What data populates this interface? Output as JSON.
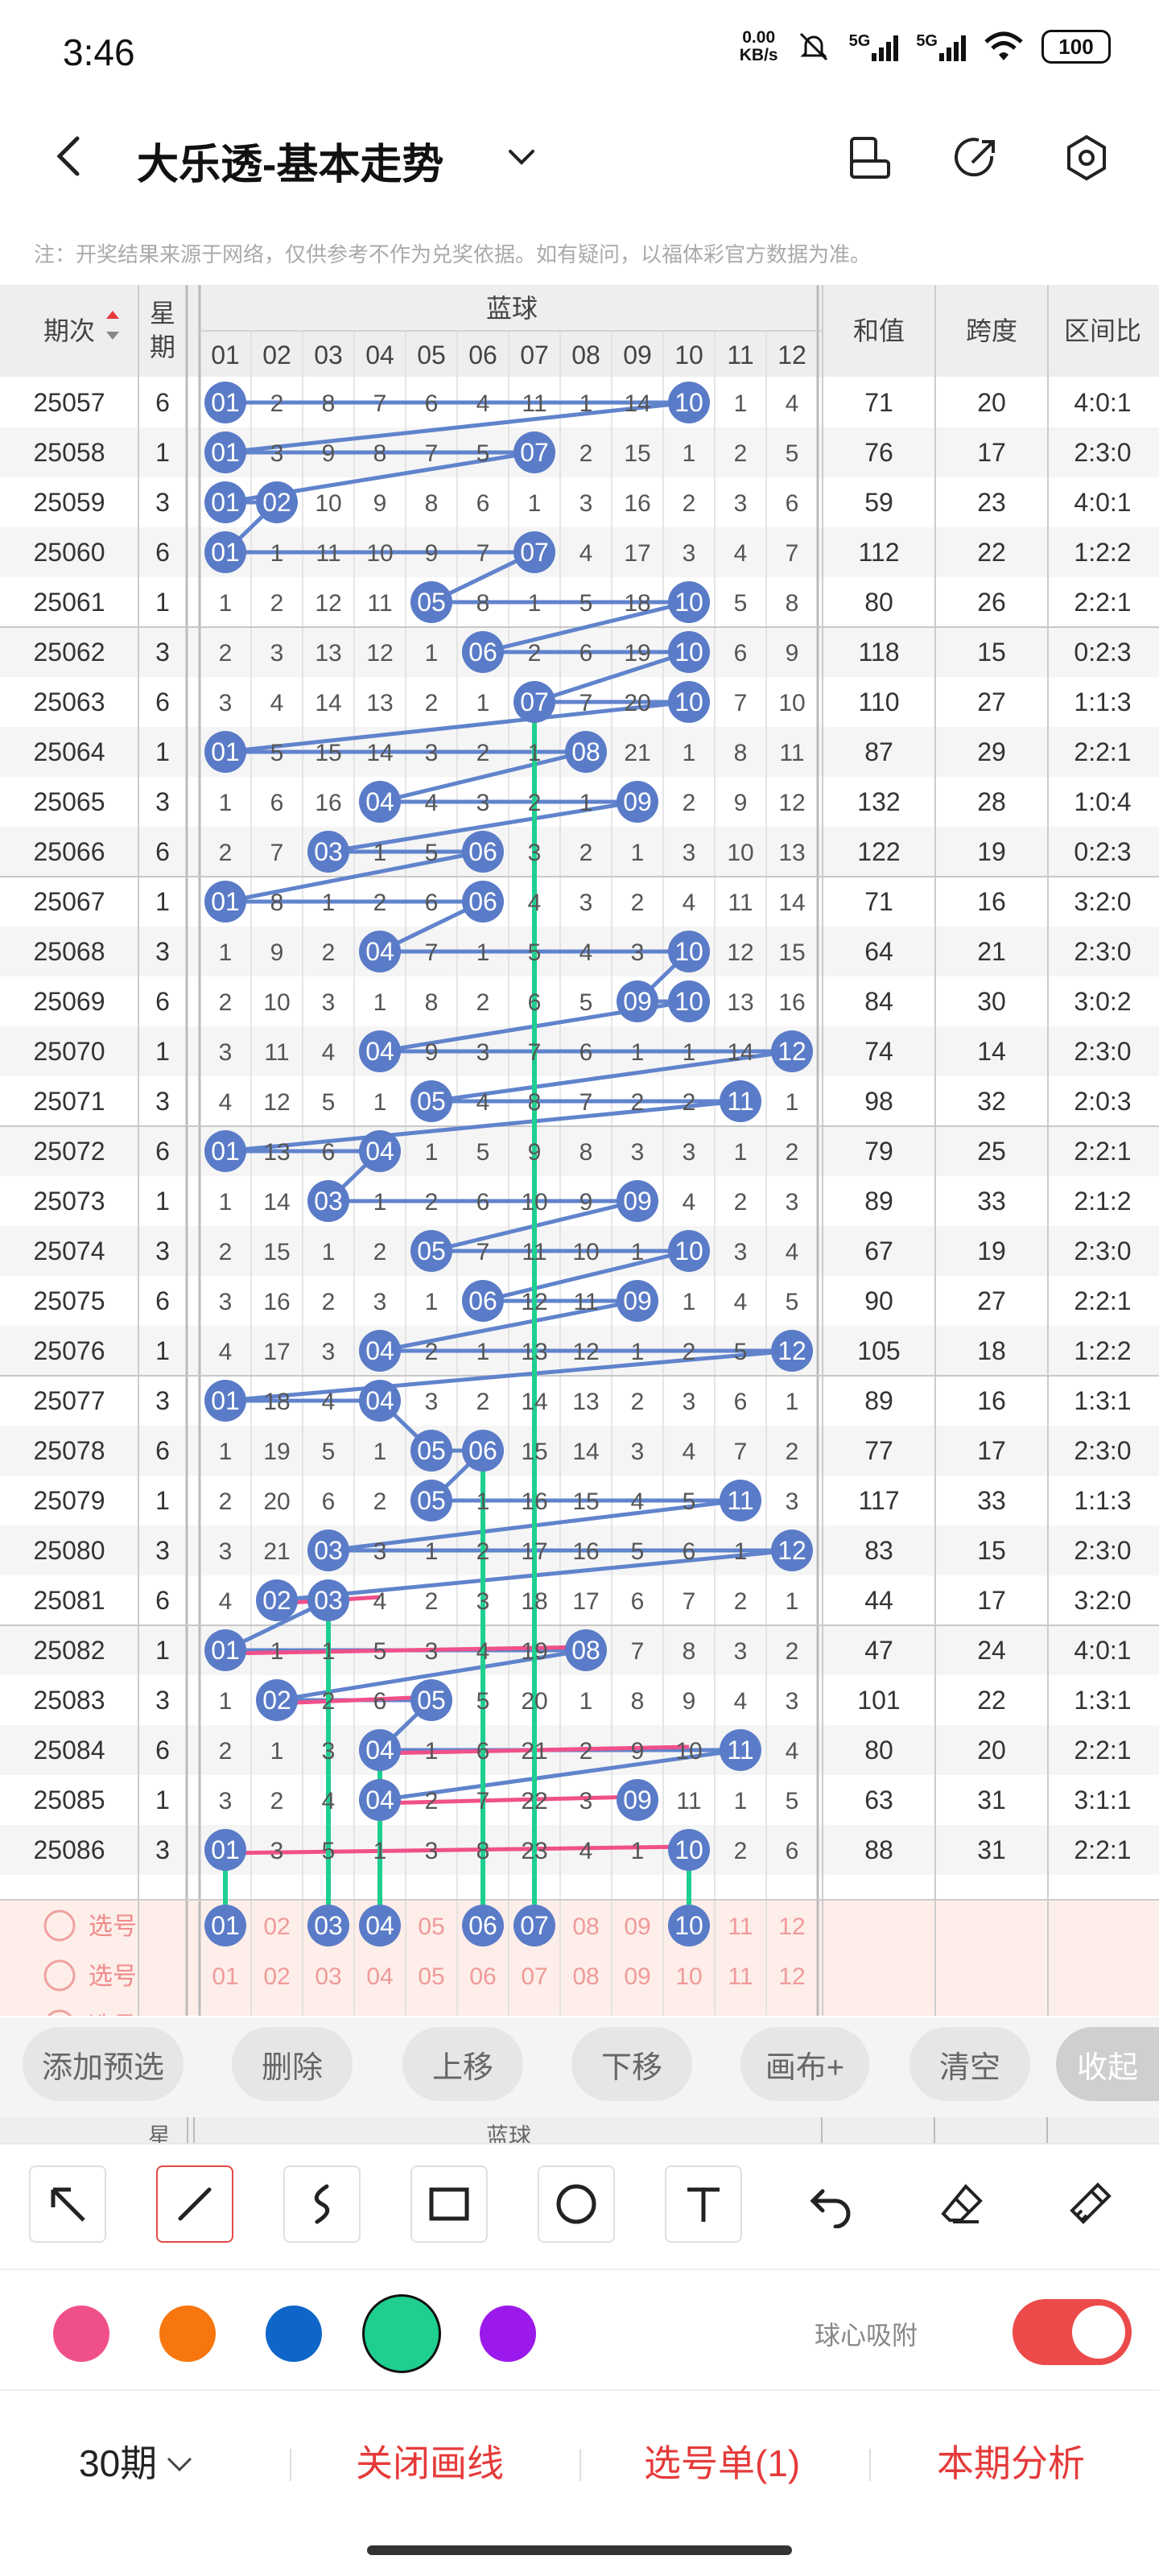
{
  "status": {
    "time": "3:46",
    "net_speed_top": "0.00",
    "net_speed_bottom": "KB/s",
    "sim1": "5G",
    "sim2": "5G",
    "battery": "100"
  },
  "nav": {
    "title": "大乐透-基本走势"
  },
  "note": "注：开奖结果来源于网络，仅供参考不作为兑奖依据。如有疑问，以福体彩官方数据为准。",
  "table": {
    "headers": {
      "period": "期次",
      "week": "星期",
      "blue": "蓝球",
      "sum": "和值",
      "span": "跨度",
      "ratio": "区间比"
    },
    "cols": [
      "01",
      "02",
      "03",
      "04",
      "05",
      "06",
      "07",
      "08",
      "09",
      "10",
      "11",
      "12"
    ],
    "rows": [
      {
        "p": "25057",
        "w": "6",
        "c": [
          "01",
          "2",
          "8",
          "7",
          "6",
          "4",
          "11",
          "1",
          "14",
          "10",
          "1",
          "4"
        ],
        "h": [
          1,
          10
        ],
        "s": "71",
        "k": "20",
        "r": "4:0:1"
      },
      {
        "p": "25058",
        "w": "1",
        "c": [
          "01",
          "3",
          "9",
          "8",
          "7",
          "5",
          "07",
          "2",
          "15",
          "1",
          "2",
          "5"
        ],
        "h": [
          1,
          7
        ],
        "s": "76",
        "k": "17",
        "r": "2:3:0"
      },
      {
        "p": "25059",
        "w": "3",
        "c": [
          "01",
          "02",
          "10",
          "9",
          "8",
          "6",
          "1",
          "3",
          "16",
          "2",
          "3",
          "6"
        ],
        "h": [
          1,
          2
        ],
        "s": "59",
        "k": "23",
        "r": "4:0:1"
      },
      {
        "p": "25060",
        "w": "6",
        "c": [
          "01",
          "1",
          "11",
          "10",
          "9",
          "7",
          "07",
          "4",
          "17",
          "3",
          "4",
          "7"
        ],
        "h": [
          1,
          7
        ],
        "s": "112",
        "k": "22",
        "r": "1:2:2"
      },
      {
        "p": "25061",
        "w": "1",
        "c": [
          "1",
          "2",
          "12",
          "11",
          "05",
          "8",
          "1",
          "5",
          "18",
          "10",
          "5",
          "8"
        ],
        "h": [
          5,
          10
        ],
        "s": "80",
        "k": "26",
        "r": "2:2:1"
      },
      {
        "p": "25062",
        "w": "3",
        "c": [
          "2",
          "3",
          "13",
          "12",
          "1",
          "06",
          "2",
          "6",
          "19",
          "10",
          "6",
          "9"
        ],
        "h": [
          6,
          10
        ],
        "s": "118",
        "k": "15",
        "r": "0:2:3"
      },
      {
        "p": "25063",
        "w": "6",
        "c": [
          "3",
          "4",
          "14",
          "13",
          "2",
          "1",
          "07",
          "7",
          "20",
          "10",
          "7",
          "10"
        ],
        "h": [
          7,
          10
        ],
        "s": "110",
        "k": "27",
        "r": "1:1:3"
      },
      {
        "p": "25064",
        "w": "1",
        "c": [
          "01",
          "5",
          "15",
          "14",
          "3",
          "2",
          "1",
          "08",
          "21",
          "1",
          "8",
          "11"
        ],
        "h": [
          1,
          8
        ],
        "s": "87",
        "k": "29",
        "r": "2:2:1"
      },
      {
        "p": "25065",
        "w": "3",
        "c": [
          "1",
          "6",
          "16",
          "04",
          "4",
          "3",
          "2",
          "1",
          "09",
          "2",
          "9",
          "12"
        ],
        "h": [
          4,
          9
        ],
        "s": "132",
        "k": "28",
        "r": "1:0:4"
      },
      {
        "p": "25066",
        "w": "6",
        "c": [
          "2",
          "7",
          "03",
          "1",
          "5",
          "06",
          "3",
          "2",
          "1",
          "3",
          "10",
          "13"
        ],
        "h": [
          3,
          6
        ],
        "s": "122",
        "k": "19",
        "r": "0:2:3"
      },
      {
        "p": "25067",
        "w": "1",
        "c": [
          "01",
          "8",
          "1",
          "2",
          "6",
          "06",
          "4",
          "3",
          "2",
          "4",
          "11",
          "14"
        ],
        "h": [
          1,
          6
        ],
        "s": "71",
        "k": "16",
        "r": "3:2:0"
      },
      {
        "p": "25068",
        "w": "3",
        "c": [
          "1",
          "9",
          "2",
          "04",
          "7",
          "1",
          "5",
          "4",
          "3",
          "10",
          "12",
          "15"
        ],
        "h": [
          4,
          10
        ],
        "s": "64",
        "k": "21",
        "r": "2:3:0"
      },
      {
        "p": "25069",
        "w": "6",
        "c": [
          "2",
          "10",
          "3",
          "1",
          "8",
          "2",
          "6",
          "5",
          "09",
          "10",
          "13",
          "16"
        ],
        "h": [
          9,
          10
        ],
        "s": "84",
        "k": "30",
        "r": "3:0:2"
      },
      {
        "p": "25070",
        "w": "1",
        "c": [
          "3",
          "11",
          "4",
          "04",
          "9",
          "3",
          "7",
          "6",
          "1",
          "1",
          "14",
          "12"
        ],
        "h": [
          4,
          12
        ],
        "s": "74",
        "k": "14",
        "r": "2:3:0"
      },
      {
        "p": "25071",
        "w": "3",
        "c": [
          "4",
          "12",
          "5",
          "1",
          "05",
          "4",
          "8",
          "7",
          "2",
          "2",
          "11",
          "1"
        ],
        "h": [
          5,
          11
        ],
        "s": "98",
        "k": "32",
        "r": "2:0:3"
      },
      {
        "p": "25072",
        "w": "6",
        "c": [
          "01",
          "13",
          "6",
          "04",
          "1",
          "5",
          "9",
          "8",
          "3",
          "3",
          "1",
          "2"
        ],
        "h": [
          1,
          4
        ],
        "s": "79",
        "k": "25",
        "r": "2:2:1"
      },
      {
        "p": "25073",
        "w": "1",
        "c": [
          "1",
          "14",
          "03",
          "1",
          "2",
          "6",
          "10",
          "9",
          "09",
          "4",
          "2",
          "3"
        ],
        "h": [
          3,
          9
        ],
        "s": "89",
        "k": "33",
        "r": "2:1:2"
      },
      {
        "p": "25074",
        "w": "3",
        "c": [
          "2",
          "15",
          "1",
          "2",
          "05",
          "7",
          "11",
          "10",
          "1",
          "10",
          "3",
          "4"
        ],
        "h": [
          5,
          10
        ],
        "s": "67",
        "k": "19",
        "r": "2:3:0"
      },
      {
        "p": "25075",
        "w": "6",
        "c": [
          "3",
          "16",
          "2",
          "3",
          "1",
          "06",
          "12",
          "11",
          "09",
          "1",
          "4",
          "5"
        ],
        "h": [
          6,
          9
        ],
        "s": "90",
        "k": "27",
        "r": "2:2:1"
      },
      {
        "p": "25076",
        "w": "1",
        "c": [
          "4",
          "17",
          "3",
          "04",
          "2",
          "1",
          "13",
          "12",
          "1",
          "2",
          "5",
          "12"
        ],
        "h": [
          4,
          12
        ],
        "s": "105",
        "k": "18",
        "r": "1:2:2"
      },
      {
        "p": "25077",
        "w": "3",
        "c": [
          "01",
          "18",
          "4",
          "04",
          "3",
          "2",
          "14",
          "13",
          "2",
          "3",
          "6",
          "1"
        ],
        "h": [
          1,
          4
        ],
        "s": "89",
        "k": "16",
        "r": "1:3:1"
      },
      {
        "p": "25078",
        "w": "6",
        "c": [
          "1",
          "19",
          "5",
          "1",
          "05",
          "06",
          "15",
          "14",
          "3",
          "4",
          "7",
          "2"
        ],
        "h": [
          5,
          6
        ],
        "s": "77",
        "k": "17",
        "r": "2:3:0"
      },
      {
        "p": "25079",
        "w": "1",
        "c": [
          "2",
          "20",
          "6",
          "2",
          "05",
          "1",
          "16",
          "15",
          "4",
          "5",
          "11",
          "3"
        ],
        "h": [
          5,
          11
        ],
        "s": "117",
        "k": "33",
        "r": "1:1:3"
      },
      {
        "p": "25080",
        "w": "3",
        "c": [
          "3",
          "21",
          "03",
          "3",
          "1",
          "2",
          "17",
          "16",
          "5",
          "6",
          "1",
          "12"
        ],
        "h": [
          3,
          12
        ],
        "s": "83",
        "k": "15",
        "r": "2:3:0"
      },
      {
        "p": "25081",
        "w": "6",
        "c": [
          "4",
          "02",
          "03",
          "4",
          "2",
          "3",
          "18",
          "17",
          "6",
          "7",
          "2",
          "1"
        ],
        "h": [
          2,
          3
        ],
        "s": "44",
        "k": "17",
        "r": "3:2:0"
      },
      {
        "p": "25082",
        "w": "1",
        "c": [
          "01",
          "1",
          "1",
          "5",
          "3",
          "4",
          "19",
          "08",
          "7",
          "8",
          "3",
          "2"
        ],
        "h": [
          1,
          8
        ],
        "s": "47",
        "k": "24",
        "r": "4:0:1"
      },
      {
        "p": "25083",
        "w": "3",
        "c": [
          "1",
          "02",
          "2",
          "6",
          "05",
          "5",
          "20",
          "1",
          "8",
          "9",
          "4",
          "3"
        ],
        "h": [
          2,
          5
        ],
        "s": "101",
        "k": "22",
        "r": "1:3:1"
      },
      {
        "p": "25084",
        "w": "6",
        "c": [
          "2",
          "1",
          "3",
          "04",
          "1",
          "6",
          "21",
          "2",
          "9",
          "10",
          "11",
          "4"
        ],
        "h": [
          4,
          11
        ],
        "s": "80",
        "k": "20",
        "r": "2:2:1"
      },
      {
        "p": "25085",
        "w": "1",
        "c": [
          "3",
          "2",
          "4",
          "04",
          "2",
          "7",
          "22",
          "3",
          "09",
          "11",
          "1",
          "5"
        ],
        "h": [
          4,
          9
        ],
        "s": "63",
        "k": "31",
        "r": "3:1:1"
      },
      {
        "p": "25086",
        "w": "3",
        "c": [
          "01",
          "3",
          "5",
          "1",
          "3",
          "8",
          "23",
          "4",
          "1",
          "10",
          "2",
          "6"
        ],
        "h": [
          1,
          10
        ],
        "s": "88",
        "k": "31",
        "r": "2:2:1"
      }
    ],
    "pick_label": "选号",
    "pick_selected": [
      1,
      3,
      4,
      6,
      7,
      10
    ]
  },
  "actions": {
    "add": "添加预选",
    "del": "删除",
    "up": "上移",
    "down": "下移",
    "canvas": "画布+",
    "clear": "清空",
    "collapse": "收起"
  },
  "peek": {
    "week": "星",
    "blue": "蓝球"
  },
  "tools": [
    "arrow-tool",
    "line-tool",
    "curve-tool",
    "rect-tool",
    "circle-tool",
    "text-tool",
    "undo-tool",
    "eraser-tool",
    "clear-tool"
  ],
  "colors": [
    "#f0508a",
    "#f7760d",
    "#0f66c9",
    "#1ecf8f",
    "#9b19ea"
  ],
  "snap_label": "球心吸附",
  "bottom": {
    "periods": "30期",
    "close": "关闭画线",
    "pick": "选号单(1)",
    "analysis": "本期分析"
  },
  "theme": {
    "ball": "#5a7bc7",
    "blue_line": "#6083cc",
    "green_line": "#1ecf8f",
    "pink_line": "#f0508a",
    "accent": "#e63a3a"
  }
}
